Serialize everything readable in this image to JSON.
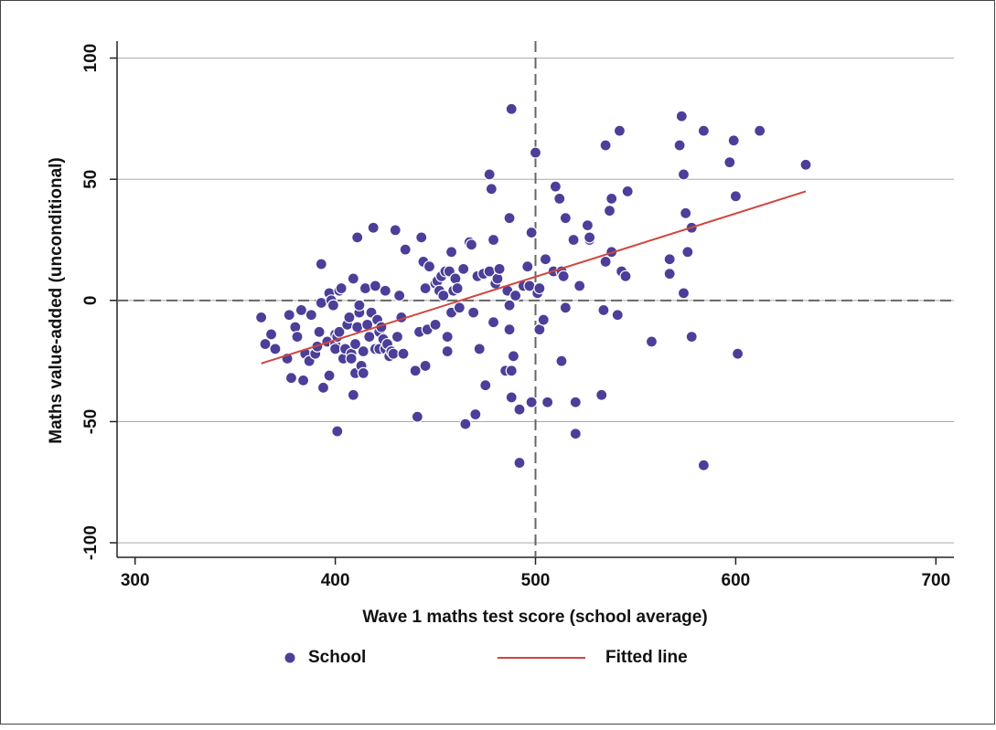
{
  "chart_data": {
    "type": "scatter",
    "xlabel": "Wave 1 maths test score (school average)",
    "ylabel": "Maths value-added (unconditional)",
    "xlim": [
      291,
      709
    ],
    "ylim": [
      -106,
      107
    ],
    "xticks": [
      300,
      400,
      500,
      600,
      700
    ],
    "yticks": [
      -100,
      -50,
      0,
      50,
      100
    ],
    "grid": true,
    "xline": 500,
    "yline": 0,
    "legend": "bottom",
    "series": [
      {
        "name": "School",
        "type": "scatter",
        "color": "#4b3f99",
        "x": [
          363,
          365,
          368,
          370,
          376,
          377,
          378,
          380,
          381,
          383,
          384,
          385,
          387,
          388,
          390,
          391,
          392,
          393,
          393,
          394,
          396,
          397,
          397,
          398,
          399,
          400,
          400,
          400,
          401,
          401,
          402,
          402,
          403,
          404,
          405,
          406,
          407,
          408,
          408,
          409,
          409,
          410,
          410,
          411,
          411,
          412,
          412,
          413,
          414,
          414,
          415,
          416,
          417,
          418,
          419,
          420,
          420,
          421,
          422,
          422,
          423,
          424,
          425,
          425,
          426,
          427,
          428,
          429,
          430,
          431,
          432,
          433,
          434,
          435,
          440,
          441,
          442,
          443,
          444,
          445,
          445,
          446,
          447,
          450,
          450,
          451,
          452,
          453,
          454,
          455,
          456,
          456,
          457,
          458,
          458,
          459,
          460,
          461,
          462,
          464,
          465,
          467,
          468,
          469,
          470,
          471,
          472,
          474,
          475,
          477,
          477,
          478,
          479,
          479,
          480,
          481,
          482,
          485,
          486,
          487,
          487,
          487,
          488,
          488,
          488,
          489,
          490,
          492,
          492,
          494,
          496,
          497,
          498,
          498,
          500,
          501,
          502,
          502,
          504,
          505,
          506,
          509,
          510,
          512,
          513,
          513,
          514,
          515,
          515,
          519,
          520,
          520,
          522,
          526,
          527,
          527,
          533,
          534,
          535,
          535,
          537,
          538,
          538,
          541,
          542,
          543,
          545,
          546,
          558,
          567,
          567,
          572,
          573,
          574,
          574,
          575,
          576,
          578,
          578,
          584,
          584,
          597,
          599,
          600,
          601,
          612,
          635
        ],
        "values": [
          -7,
          -18,
          -14,
          -20,
          -24,
          -6,
          -32,
          -11,
          -15,
          -4,
          -33,
          -22,
          -25,
          -6,
          -22,
          -19,
          -13,
          15,
          -1,
          -36,
          -17,
          3,
          -31,
          0,
          -2,
          -14,
          -18,
          -20,
          -54,
          -15,
          -13,
          4,
          5,
          -24,
          -20,
          -10,
          -7,
          -22,
          -24,
          -39,
          9,
          -18,
          -30,
          26,
          -11,
          -5,
          -2,
          -27,
          -30,
          -21,
          5,
          -10,
          -15,
          -5,
          30,
          -20,
          6,
          -8,
          -13,
          -20,
          -11,
          -16,
          -20,
          4,
          -18,
          -23,
          -21,
          -22,
          29,
          -15,
          2,
          -7,
          -22,
          21,
          -29,
          -48,
          -13,
          26,
          16,
          -27,
          5,
          -12,
          14,
          -10,
          7,
          8,
          4,
          10,
          2,
          12,
          -21,
          -15,
          12,
          -5,
          20,
          4,
          9,
          5,
          -3,
          13,
          -51,
          24,
          23,
          -5,
          -47,
          10,
          -20,
          11,
          -35,
          12,
          52,
          46,
          25,
          -9,
          7,
          9,
          13,
          -29,
          4,
          -12,
          -2,
          34,
          79,
          -29,
          -40,
          -23,
          2,
          -67,
          -45,
          6,
          14,
          6,
          -42,
          28,
          61,
          3,
          5,
          -12,
          -8,
          17,
          -42,
          12,
          47,
          42,
          12,
          -25,
          10,
          34,
          -3,
          25,
          -42,
          -55,
          6,
          31,
          25,
          26,
          -39,
          -4,
          16,
          64,
          37,
          20,
          42,
          -6,
          70,
          12,
          10,
          45,
          -17,
          17,
          11,
          64,
          76,
          52,
          3,
          36,
          20,
          -15,
          30,
          70,
          -68,
          57,
          66,
          43,
          -22,
          70,
          56
        ]
      },
      {
        "name": "Fitted line",
        "type": "line",
        "color": "#d0463f",
        "x": [
          363,
          635
        ],
        "values": [
          -26,
          45
        ]
      }
    ]
  }
}
